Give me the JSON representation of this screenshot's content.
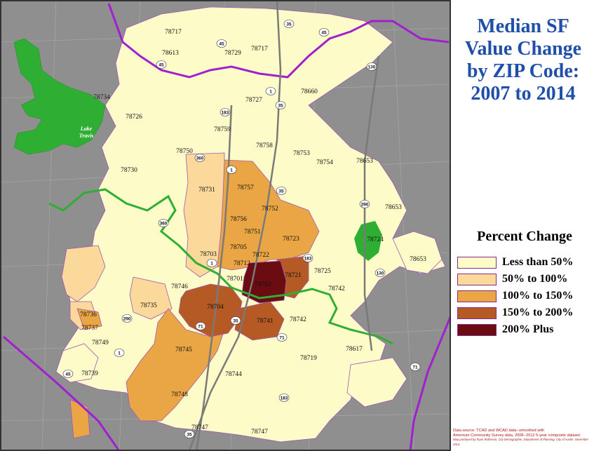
{
  "title_lines": [
    "Median SF",
    "Value Change",
    "by ZIP Code:",
    "2007 to 2014"
  ],
  "legend": {
    "title": "Percent Change",
    "items": [
      {
        "label": "Less than 50%",
        "color": "#fdfbc8"
      },
      {
        "label": "50% to 100%",
        "color": "#fad99a"
      },
      {
        "label": "100% to 150%",
        "color": "#eaa644"
      },
      {
        "label": "150% to 200%",
        "color": "#b55a24"
      },
      {
        "label": "200% Plus",
        "color": "#6b0b12"
      }
    ]
  },
  "source": {
    "line1": "Data source: TCAD and WCAD data--smoothed with",
    "line2": "American Community Survey data, 2008--2012 5-year composite dataset.",
    "line3": "Map produced by Ryan Robinson, City Demographer, Department of Planning, City of Austin. November 2014."
  },
  "lake_label": [
    "Lake",
    "Travis"
  ],
  "zip_labels": [
    "78717",
    "78613",
    "78729",
    "78717",
    "78660",
    "78727",
    "78734",
    "78726",
    "78759",
    "78758",
    "78753",
    "78750",
    "78754",
    "78653",
    "78730",
    "78757",
    "78731",
    "78752",
    "78756",
    "78751",
    "78723",
    "78653",
    "78724",
    "78703",
    "78705",
    "78722",
    "78653",
    "78712",
    "78725",
    "78701",
    "78721",
    "78702",
    "78746",
    "78742",
    "78704",
    "78736",
    "78735",
    "78741",
    "78742",
    "78737",
    "78749",
    "78745",
    "78617",
    "78719",
    "78739",
    "78744",
    "78748",
    "78747",
    "78747"
  ],
  "highway_shields": [
    "45",
    "45",
    "45",
    "35",
    "1",
    "183",
    "35",
    "1",
    "35",
    "360",
    "290",
    "360",
    "1",
    "183",
    "290",
    "35",
    "71",
    "71",
    "1",
    "45",
    "183",
    "35",
    "71",
    "130",
    "130"
  ],
  "colors": {
    "title": "#1f4fa8",
    "water": "#2fae34",
    "boundary": "#a020d0",
    "background": "#8e8e8e",
    "source_text": "#b01414"
  }
}
